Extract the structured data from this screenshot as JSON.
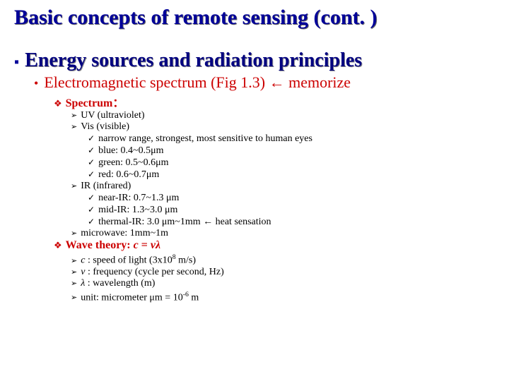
{
  "colors": {
    "title": "#000099",
    "section": "#000080",
    "red": "#cc0000",
    "black": "#000000",
    "bg": "#ffffff",
    "shadow": "#666666"
  },
  "fontsizes": {
    "title": 30,
    "section": 28,
    "sub1": 22,
    "sub2": 16,
    "sub3": 14,
    "sub4": 14
  },
  "title": "Basic concepts of remote sensing (cont. )",
  "section": "Energy sources and radiation principles",
  "sub1_a": "Electromagnetic spectrum (Fig 1.3) ",
  "sub1_arrow": "←",
  "sub1_b": " memorize",
  "spectrum_label": "Spectrum：",
  "uv": "UV (ultraviolet)",
  "vis": "Vis (visible)",
  "vis_1": "narrow range, strongest, most sensitive to human eyes",
  "vis_2": "blue: 0.4~0.5μm",
  "vis_3": "green: 0.5~0.6μm",
  "vis_4": "red: 0.6~0.7μm",
  "ir": "IR (infrared)",
  "ir_1": "near-IR: 0.7~1.3 μm",
  "ir_2": "mid-IR: 1.3~3.0 μm",
  "ir_3": "thermal-IR: 3.0 μm~1mm ← heat sensation",
  "microwave": "microwave: 1mm~1m",
  "wave_label_a": "Wave theory: ",
  "wave_c": "c",
  "wave_eq": " = ",
  "wave_nl": "νλ",
  "w1_a": "c",
  "w1_b": " : speed of light (3x10",
  "w1_exp": "8",
  "w1_c": " m/s)",
  "w2_a": "ν",
  "w2_b": " : frequency (cycle per second, Hz)",
  "w3_a": "λ",
  "w3_b": " : wavelength (m)",
  "w4_a": "unit: micrometer μm = 10",
  "w4_exp": "-6",
  "w4_b": " m"
}
